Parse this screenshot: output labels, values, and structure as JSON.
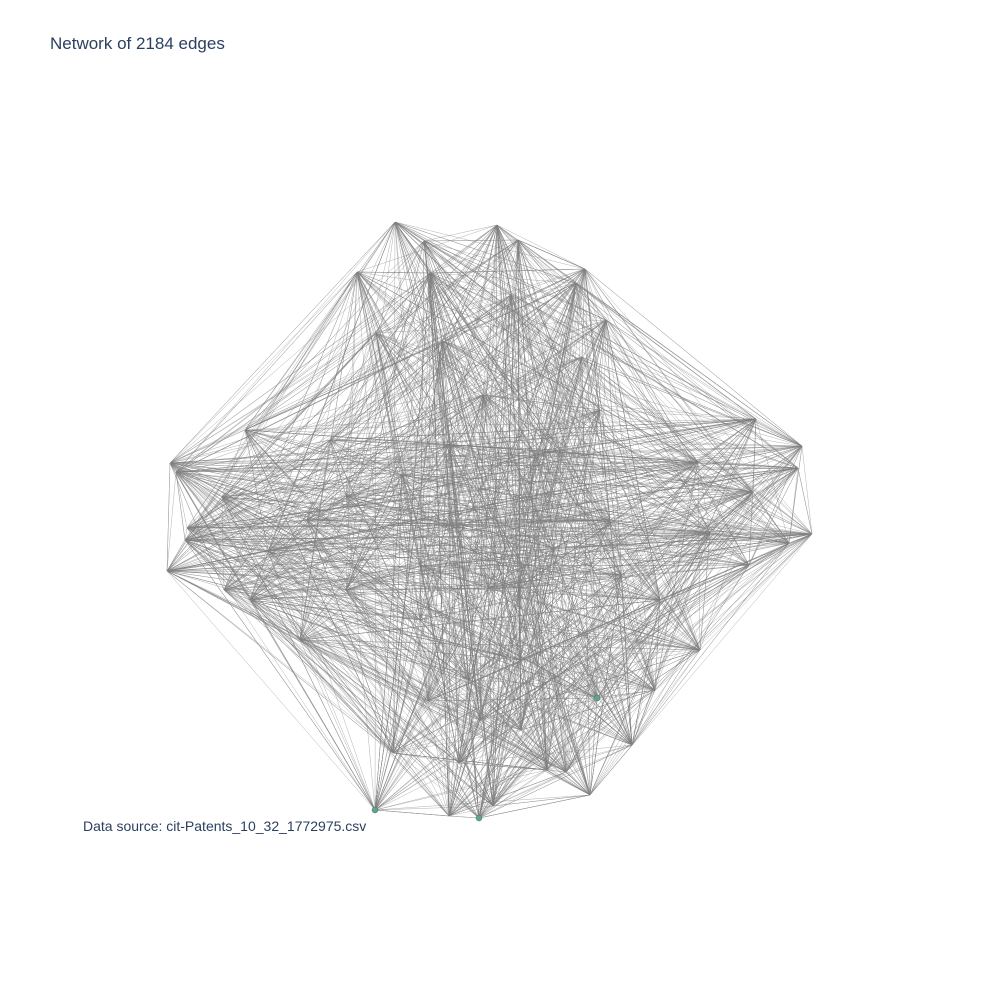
{
  "title": "Network of 2184 edges",
  "annotation": "Data source: cit-Patents_10_32_1772975.csv",
  "colors": {
    "edge": "#808080",
    "node": "#5fa391",
    "text": "#2a3f5f",
    "background": "#ffffff"
  }
}
